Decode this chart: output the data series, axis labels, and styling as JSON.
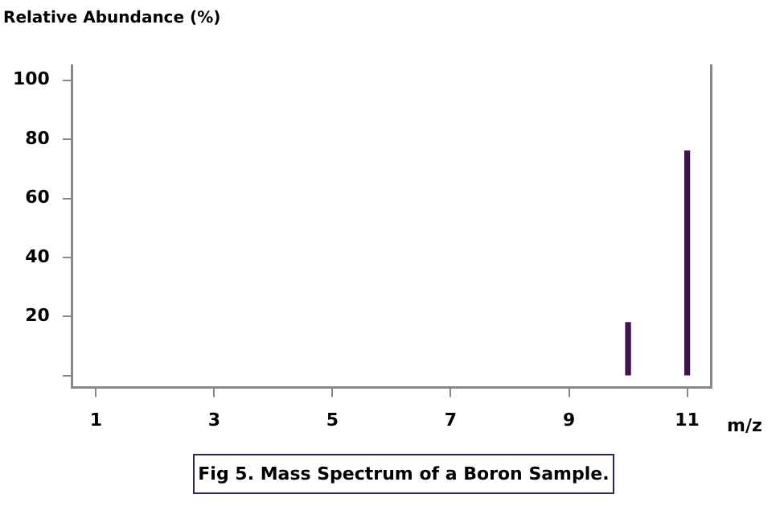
{
  "chart_data": {
    "type": "bar",
    "ylabel": "Relative Abundance (%)",
    "xlabel": "m/z",
    "annotations": [
      "Fig 5. Mass Spectrum of a Boron Sample."
    ],
    "x": [
      10,
      11
    ],
    "values": [
      18,
      76
    ],
    "color": "#3d1450",
    "xlim": [
      0.6,
      11.4
    ],
    "xticks": [
      1,
      3,
      5,
      7,
      9,
      11
    ],
    "ylim": [
      -4,
      105
    ],
    "yticks": [
      {
        "value": 0,
        "label": null
      },
      20,
      40,
      60,
      80,
      100
    ],
    "grid": false,
    "legend": false
  }
}
